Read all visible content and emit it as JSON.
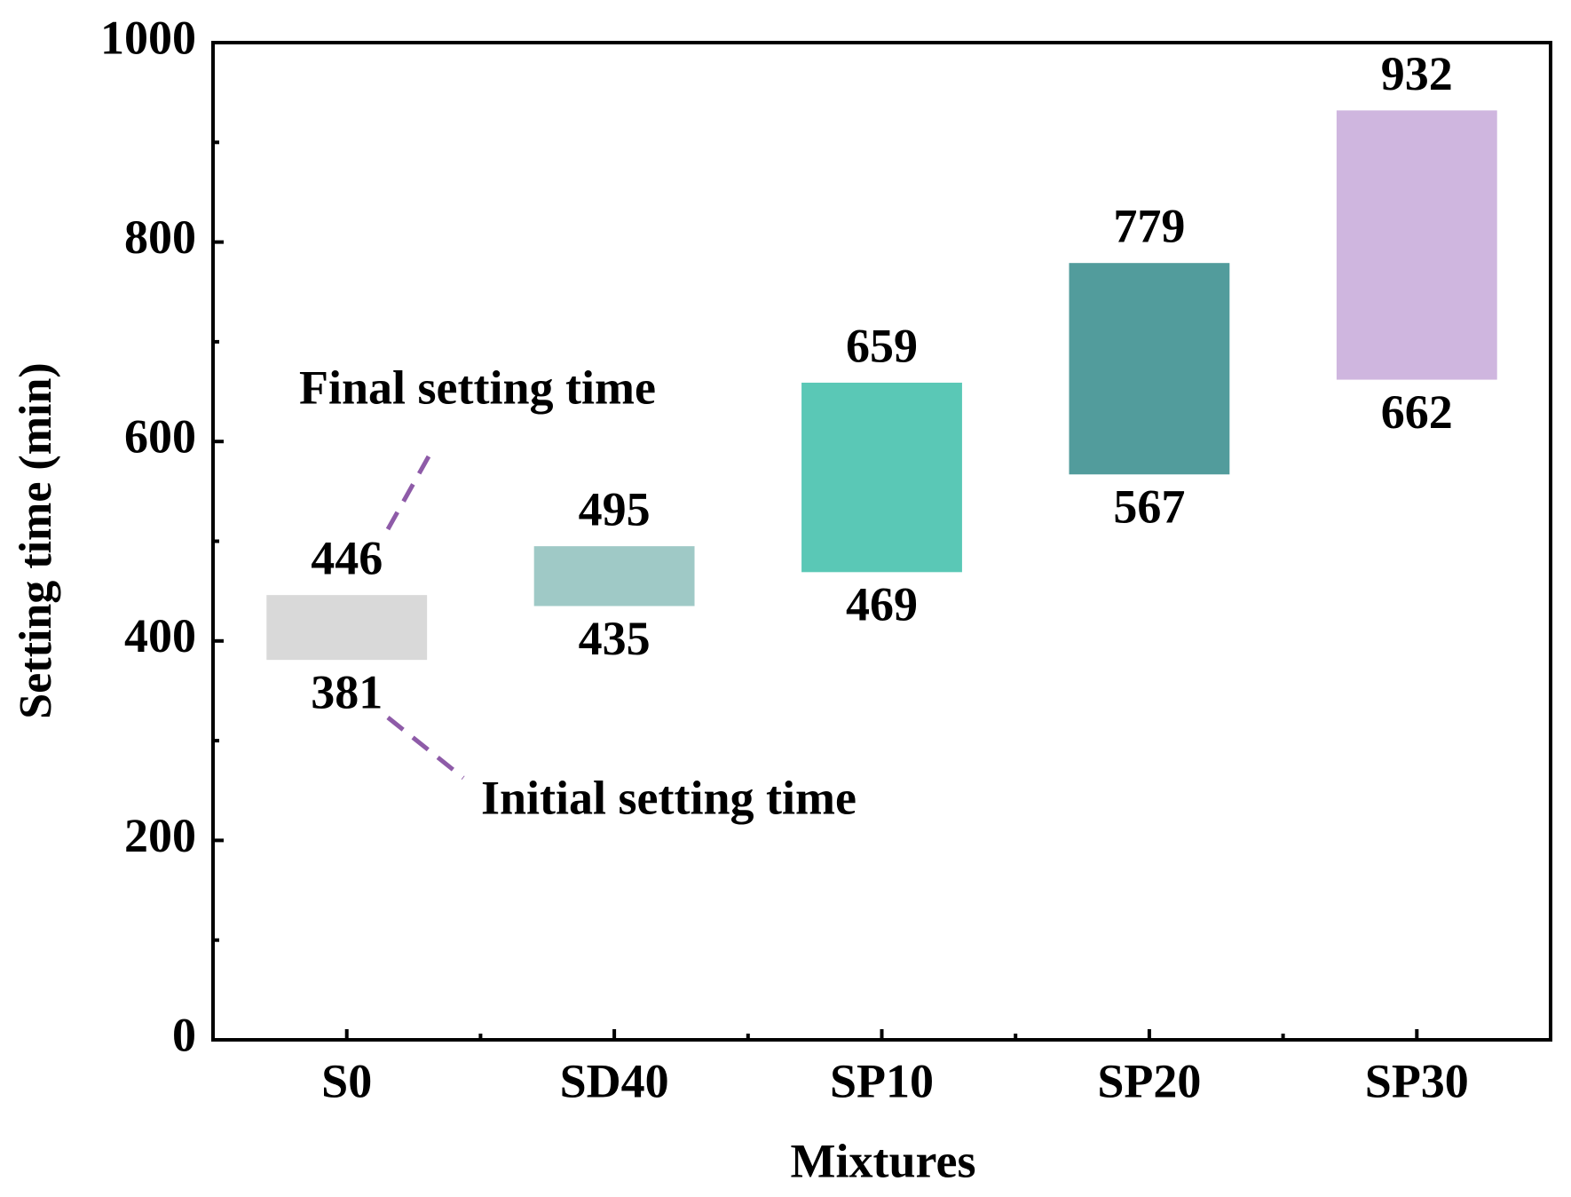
{
  "chart_data": {
    "type": "floating-bar",
    "x_label": "Mixtures",
    "y_label": "Setting time (min)",
    "categories": [
      "S0",
      "SD40",
      "SP10",
      "SP20",
      "SP30"
    ],
    "colors": [
      "#d9d9d9",
      "#9fc9c6",
      "#5ac8b6",
      "#529c9c",
      "#cfb6df"
    ],
    "series": [
      {
        "name": "Initial setting time",
        "values": [
          381,
          435,
          469,
          567,
          662
        ]
      },
      {
        "name": "Final setting time",
        "values": [
          446,
          495,
          659,
          779,
          932
        ]
      }
    ],
    "ylim": [
      0,
      1000
    ],
    "yticks": [
      0,
      200,
      400,
      600,
      800,
      1000
    ],
    "yminorticks": [
      100,
      300,
      500,
      700,
      900
    ]
  }
}
